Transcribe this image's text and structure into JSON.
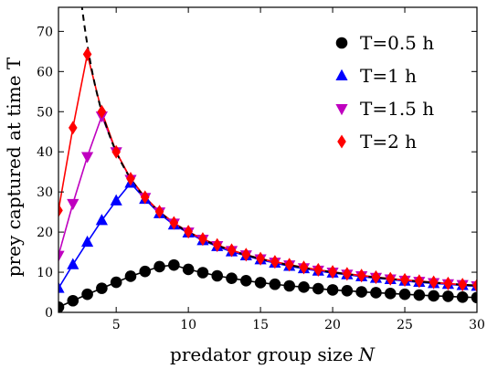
{
  "chart_data": {
    "type": "line",
    "xlabel": "predator group size",
    "xlabel_var": "N",
    "ylabel": "prey captured at time T",
    "xlim": [
      1,
      30
    ],
    "ylim": [
      0,
      76
    ],
    "xticks": [
      5,
      10,
      15,
      20,
      25,
      30
    ],
    "yticks": [
      0,
      10,
      20,
      30,
      40,
      50,
      60,
      70
    ],
    "grid": false,
    "legend_position": "top-right",
    "colors": {
      "T=0.5 h": "#000000",
      "T=1 h": "#0000ff",
      "T=1.5 h": "#bf00bf",
      "T=2 h": "#ff0000",
      "limit": "#000000"
    },
    "series": [
      {
        "name": "T=0.5 h",
        "marker": "circle",
        "x": [
          1,
          2,
          3,
          4,
          5,
          6,
          7,
          8,
          9,
          10,
          11,
          12,
          13,
          14,
          15,
          16,
          17,
          18,
          19,
          20,
          21,
          22,
          23,
          24,
          25,
          26,
          27,
          28,
          29,
          30
        ],
        "y": [
          1.3,
          2.9,
          4.5,
          6.0,
          7.5,
          9.0,
          10.2,
          11.4,
          11.8,
          10.7,
          9.9,
          9.1,
          8.5,
          7.9,
          7.4,
          7.0,
          6.6,
          6.3,
          5.9,
          5.6,
          5.4,
          5.1,
          4.9,
          4.7,
          4.5,
          4.3,
          4.1,
          4.0,
          3.8,
          3.7
        ]
      },
      {
        "name": "T=1 h",
        "marker": "triangle-up",
        "x": [
          1,
          2,
          3,
          4,
          5,
          6,
          7,
          8,
          9,
          10,
          11,
          12,
          13,
          14,
          15,
          16,
          17,
          18,
          19,
          20,
          21,
          22,
          23,
          24,
          25,
          26,
          27,
          28,
          29,
          30
        ],
        "y": [
          6.0,
          11.9,
          17.5,
          22.9,
          27.8,
          32.2,
          28.2,
          24.6,
          21.8,
          19.8,
          17.9,
          16.4,
          15.1,
          14.1,
          13.1,
          12.3,
          11.5,
          10.9,
          10.3,
          9.8,
          9.4,
          8.9,
          8.5,
          8.2,
          7.8,
          7.5,
          7.2,
          7.0,
          6.7,
          6.5
        ]
      },
      {
        "name": "T=1.5 h",
        "marker": "triangle-down",
        "x": [
          1,
          2,
          3,
          4,
          5,
          6,
          7,
          8,
          9,
          10,
          11,
          12,
          13,
          14,
          15,
          16,
          17,
          18,
          19,
          20,
          21,
          22,
          23,
          24,
          25,
          26,
          27,
          28,
          29,
          30
        ],
        "y": [
          14.2,
          27.1,
          38.8,
          48.9,
          40.0,
          33.1,
          28.6,
          25.0,
          22.2,
          20.0,
          18.2,
          16.6,
          15.4,
          14.3,
          13.3,
          12.5,
          11.8,
          11.1,
          10.5,
          10.0,
          9.5,
          9.1,
          8.7,
          8.3,
          8.0,
          7.7,
          7.4,
          7.1,
          6.9,
          6.6
        ]
      },
      {
        "name": "T=2 h",
        "marker": "diamond",
        "x": [
          1,
          2,
          3,
          4,
          5,
          6,
          7,
          8,
          9,
          10,
          11,
          12,
          13,
          14,
          15,
          16,
          17,
          18,
          19,
          20,
          21,
          22,
          23,
          24,
          25,
          26,
          27,
          28,
          29,
          30
        ],
        "y": [
          25.4,
          46.0,
          64.3,
          50.0,
          40.0,
          33.3,
          28.7,
          25.1,
          22.3,
          20.1,
          18.3,
          16.8,
          15.5,
          14.4,
          13.4,
          12.6,
          11.9,
          11.2,
          10.6,
          10.1,
          9.6,
          9.2,
          8.8,
          8.4,
          8.1,
          7.8,
          7.5,
          7.2,
          6.9,
          6.7
        ]
      }
    ],
    "limit_curve": {
      "style": "dashed black",
      "k": 200,
      "x_from": 2.6,
      "x_to": 30
    },
    "legend": [
      {
        "label": "T=0.5 h",
        "marker": "circle"
      },
      {
        "label": "T=1 h",
        "marker": "triangle-up"
      },
      {
        "label": "T=1.5 h",
        "marker": "triangle-down"
      },
      {
        "label": "T=2 h",
        "marker": "diamond"
      }
    ]
  }
}
